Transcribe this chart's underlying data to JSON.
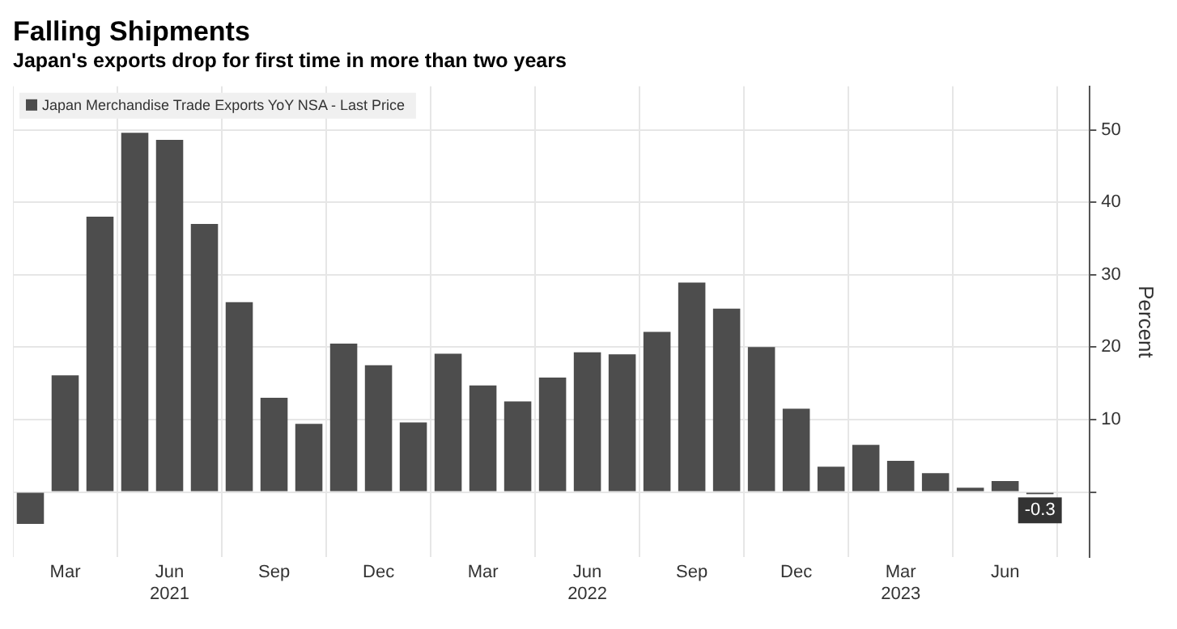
{
  "chart_data": {
    "type": "bar",
    "title": "Falling Shipments",
    "subtitle": "Japan's exports drop for first time in more than two years",
    "ylabel": "Percent",
    "x": [
      "2021-02",
      "2021-03",
      "2021-04",
      "2021-05",
      "2021-06",
      "2021-07",
      "2021-08",
      "2021-09",
      "2021-10",
      "2021-11",
      "2021-12",
      "2022-01",
      "2022-02",
      "2022-03",
      "2022-04",
      "2022-05",
      "2022-06",
      "2022-07",
      "2022-08",
      "2022-09",
      "2022-10",
      "2022-11",
      "2022-12",
      "2023-01",
      "2023-02",
      "2023-03",
      "2023-04",
      "2023-05",
      "2023-06",
      "2023-07"
    ],
    "series": [
      {
        "name": "Japan Merchandise Trade Exports YoY NSA - Last Price",
        "color": "#4d4d4d",
        "values": [
          -4.4,
          16.1,
          38,
          49.6,
          48.6,
          37,
          26.2,
          13,
          9.4,
          20.5,
          17.5,
          9.6,
          19.1,
          14.7,
          12.5,
          15.8,
          19.3,
          19,
          22.1,
          28.9,
          25.3,
          20,
          11.5,
          3.5,
          6.5,
          4.3,
          2.6,
          0.6,
          1.5,
          -0.3
        ],
        "value_labels": [
          null,
          null,
          null,
          null,
          null,
          null,
          null,
          null,
          null,
          null,
          null,
          null,
          null,
          null,
          null,
          null,
          null,
          null,
          null,
          null,
          null,
          null,
          null,
          null,
          null,
          null,
          null,
          null,
          null,
          "-0.3"
        ]
      }
    ],
    "xlim": [
      "2021-01-16",
      "2023-08-14"
    ],
    "xticks": [
      {
        "value": "2021-03",
        "label": "Mar"
      },
      {
        "value": "2021-06",
        "label": "Jun\n2021"
      },
      {
        "value": "2021-09",
        "label": "Sep"
      },
      {
        "value": "2021-12",
        "label": "Dec"
      },
      {
        "value": "2022-03",
        "label": "Mar"
      },
      {
        "value": "2022-06",
        "label": "Jun\n2022"
      },
      {
        "value": "2022-09",
        "label": "Sep"
      },
      {
        "value": "2022-12",
        "label": "Dec"
      },
      {
        "value": "2023-03",
        "label": "Mar\n2023"
      },
      {
        "value": "2023-06",
        "label": "Jun"
      }
    ],
    "ylim": [
      -9,
      56
    ],
    "yticks": [
      {
        "value": 0,
        "label": null
      },
      10,
      20,
      30,
      40,
      50
    ],
    "grid": true,
    "legend": "top left"
  }
}
